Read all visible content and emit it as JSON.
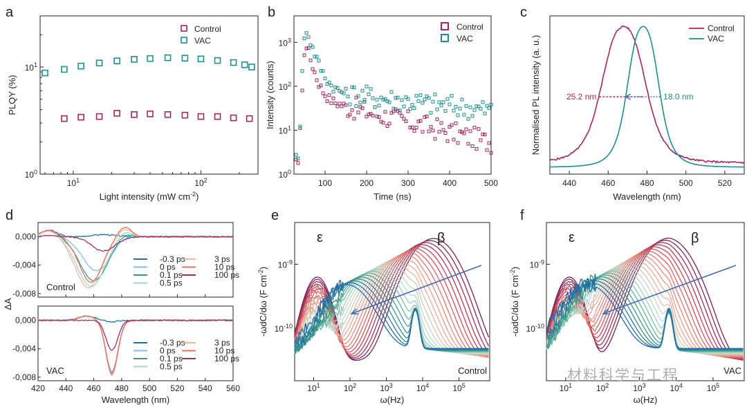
{
  "panels": {
    "a": "a",
    "b": "b",
    "c": "c",
    "d": "d",
    "e": "e",
    "f": "f"
  },
  "colors": {
    "control": "#a3255e",
    "vac": "#1b8f8f",
    "arrow": "#3f6db3",
    "axis": "#222222"
  },
  "watermark": "材料科学与工程",
  "chart_data": [
    {
      "id": "a",
      "type": "scatter",
      "xlabel": "Light intensity (mW cm",
      "xlabel_sup": "-2",
      "xlabel_end": ")",
      "ylabel": "PLQY (%)",
      "xscale": "log",
      "yscale": "log",
      "xlim": [
        5.5,
        280
      ],
      "ylim": [
        1,
        30
      ],
      "x_ticks": [
        {
          "v": 10,
          "base": "10",
          "exp": "1"
        },
        {
          "v": 100,
          "base": "10",
          "exp": "2"
        }
      ],
      "y_ticks": [
        {
          "v": 1,
          "base": "10",
          "exp": "0"
        },
        {
          "v": 10,
          "base": "10",
          "exp": "1"
        }
      ],
      "legend": [
        "Control",
        "VAC"
      ],
      "series": [
        {
          "name": "Control",
          "x": [
            8.5,
            11.5,
            16,
            22,
            30,
            40,
            55,
            75,
            100,
            135,
            180,
            240
          ],
          "y": [
            3.3,
            3.4,
            3.45,
            3.7,
            3.6,
            3.65,
            3.6,
            3.55,
            3.45,
            3.45,
            3.35,
            3.3
          ]
        },
        {
          "name": "VAC",
          "x": [
            6,
            8.5,
            11.5,
            16,
            22,
            30,
            40,
            55,
            75,
            100,
            135,
            180,
            220,
            250
          ],
          "y": [
            8.8,
            9.5,
            10.2,
            10.9,
            11.4,
            11.8,
            12.0,
            12.2,
            12.1,
            11.9,
            11.5,
            11.0,
            10.5,
            10.0
          ]
        }
      ]
    },
    {
      "id": "b",
      "type": "scatter",
      "xlabel": "Time (ns)",
      "ylabel": "Intensity (counts)",
      "xscale": "linear",
      "yscale": "log",
      "xlim": [
        25,
        500
      ],
      "ylim": [
        1,
        4000
      ],
      "x_ticks": [
        100,
        200,
        300,
        400,
        500
      ],
      "y_ticks": [
        {
          "v": 1,
          "base": "10",
          "exp": "0"
        },
        {
          "v": 10,
          "base": "10",
          "exp": "1"
        },
        {
          "v": 100,
          "base": "10",
          "exp": "2"
        },
        {
          "v": 1000,
          "base": "10",
          "exp": "3"
        }
      ],
      "legend": [
        "Control",
        "VAC"
      ],
      "series": [
        {
          "name": "Control",
          "peak_ns": 52,
          "peak": 1400,
          "fast_tau_ns": 12,
          "fast_amp": 1050,
          "slow_tau_ns": 180,
          "slow_amp": 60,
          "floor": 1.5,
          "step_ns": 5
        },
        {
          "name": "VAC",
          "peak_ns": 52,
          "peak": 3000,
          "fast_tau_ns": 15,
          "fast_amp": 2200,
          "slow_tau_ns": 400,
          "slow_amp": 85,
          "floor": 2,
          "step_ns": 5
        }
      ]
    },
    {
      "id": "c",
      "type": "line",
      "xlabel": "Wavelength (nm)",
      "ylabel": "Normalised PL intensity (a. u.)",
      "xlim": [
        430,
        530
      ],
      "ylim": [
        0,
        1.05
      ],
      "x_ticks": [
        440,
        460,
        480,
        500,
        520
      ],
      "legend": [
        "Control",
        "VAC"
      ],
      "annotations": [
        {
          "text": "25.2 nm",
          "series": "Control"
        },
        {
          "text": "18.0 nm",
          "series": "VAC"
        }
      ],
      "series": [
        {
          "name": "Control",
          "center_nm": 468,
          "fwhm_nm": 25.2,
          "baseline": 0.03
        },
        {
          "name": "VAC",
          "center_nm": 478,
          "fwhm_nm": 18.0,
          "baseline": 0.0
        }
      ]
    },
    {
      "id": "d",
      "type": "line",
      "xlabel": "Wavelength (nm)",
      "ylabel": "ΔA",
      "xlim": [
        420,
        560
      ],
      "ylim_each": [
        -0.0085,
        0.002
      ],
      "x_ticks": [
        420,
        440,
        460,
        480,
        500,
        520,
        540,
        560
      ],
      "y_ticks": [
        "0,000",
        "-0,004",
        "-0,008"
      ],
      "y_tick_values": [
        0,
        -0.004,
        -0.008
      ],
      "delays": [
        "-0.3 ps",
        "0 ps",
        "0.1 ps",
        "0.5 ps",
        "3 ps",
        "10 ps",
        "100 ps"
      ],
      "delay_colors": [
        "#1f6fa8",
        "#7fc0e3",
        "#3a9b84",
        "#a6d5c3",
        "#f2b7a4",
        "#e5745e",
        "#a32b6f"
      ],
      "subplots": [
        {
          "name": "Control",
          "min_nm": [
            467,
            462,
            460,
            458,
            456,
            458,
            467
          ],
          "depth": [
            0.0003,
            -0.0048,
            -0.0062,
            -0.007,
            -0.0072,
            -0.0064,
            -0.002
          ],
          "width_nm": [
            12,
            14,
            14,
            14,
            13,
            12,
            12
          ]
        },
        {
          "name": "VAC",
          "min_nm": [
            473,
            473,
            473,
            473,
            473,
            473,
            473
          ],
          "depth": [
            -0.0002,
            -0.0072,
            -0.0076,
            -0.0078,
            -0.0077,
            -0.0074,
            -0.0042
          ],
          "width_nm": [
            6,
            6,
            6,
            6,
            6,
            6,
            6
          ]
        }
      ]
    },
    {
      "id": "e",
      "type": "line",
      "xlabel": "ω(Hz)",
      "ylabel": "-ωdC/dω (F cm",
      "ylabel_sup": "-2",
      "ylabel_end": ")",
      "xscale": "log",
      "yscale": "log",
      "xlim": [
        3,
        700000
      ],
      "ylim": [
        1.5e-11,
        4.5e-09
      ],
      "x_ticks": [
        {
          "v": 10,
          "base": "10",
          "exp": "1"
        },
        {
          "v": 100,
          "base": "10",
          "exp": "2"
        },
        {
          "v": 1000,
          "base": "10",
          "exp": "3"
        },
        {
          "v": 10000,
          "base": "10",
          "exp": "4"
        },
        {
          "v": 100000,
          "base": "10",
          "exp": "5"
        }
      ],
      "y_ticks": [
        {
          "v": 1e-10,
          "base": "10",
          "exp": "-10"
        },
        {
          "v": 1e-09,
          "base": "10",
          "exp": "-9"
        }
      ],
      "labels": {
        "epsilon": "ε",
        "beta": "β",
        "name": "Control"
      },
      "series_count": 24,
      "beta_peak_start_hz": 20000,
      "beta_peak_end_hz": 80
    },
    {
      "id": "f",
      "type": "line",
      "xlabel": "ω(Hz)",
      "ylabel": "-ωdC/dω (F cm",
      "ylabel_sup": "-2",
      "ylabel_end": ")",
      "xscale": "log",
      "yscale": "log",
      "xlim": [
        3,
        700000
      ],
      "ylim": [
        1.5e-11,
        4.5e-09
      ],
      "x_ticks": [
        {
          "v": 10,
          "base": "10",
          "exp": "1"
        },
        {
          "v": 100,
          "base": "10",
          "exp": "2"
        },
        {
          "v": 1000,
          "base": "10",
          "exp": "3"
        },
        {
          "v": 10000,
          "base": "10",
          "exp": "4"
        },
        {
          "v": 100000,
          "base": "10",
          "exp": "5"
        }
      ],
      "y_ticks": [
        {
          "v": 1e-10,
          "base": "10",
          "exp": "-10"
        },
        {
          "v": 1e-09,
          "base": "10",
          "exp": "-9"
        }
      ],
      "labels": {
        "epsilon": "ε",
        "beta": "β",
        "name": "VAC"
      },
      "series_count": 24,
      "beta_peak_start_hz": 6000,
      "beta_peak_end_hz": 40
    }
  ]
}
